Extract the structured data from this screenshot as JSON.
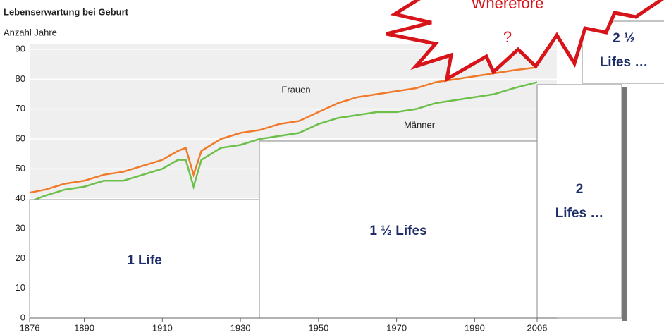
{
  "chart_data": {
    "type": "line",
    "title": "Lebenserwartung bei Geburt",
    "subtitle": "Anzahl Jahre",
    "x": [
      1876,
      1880,
      1885,
      1890,
      1895,
      1900,
      1905,
      1910,
      1914,
      1916,
      1918,
      1920,
      1925,
      1930,
      1935,
      1940,
      1945,
      1950,
      1955,
      1960,
      1965,
      1970,
      1975,
      1980,
      1985,
      1990,
      1995,
      2000,
      2006
    ],
    "series": [
      {
        "name": "Frauen",
        "color": "#f07a2a",
        "values": [
          42,
          43,
          45,
          46,
          48,
          49,
          51,
          53,
          56,
          57,
          48,
          56,
          60,
          62,
          63,
          65,
          66,
          69,
          72,
          74,
          75,
          76,
          77,
          79,
          80,
          81,
          82,
          83,
          84
        ]
      },
      {
        "name": "Männer",
        "color": "#6cc04a",
        "values": [
          39,
          41,
          43,
          44,
          46,
          46,
          48,
          50,
          53,
          53,
          44,
          53,
          57,
          58,
          60,
          61,
          62,
          65,
          67,
          68,
          69,
          69,
          70,
          72,
          73,
          74,
          75,
          77,
          79
        ]
      }
    ],
    "xlim": [
      1876,
      2006
    ],
    "ylim": [
      0,
      90
    ],
    "xticks": [
      1876,
      1890,
      1910,
      1930,
      1950,
      1970,
      1990,
      2006
    ],
    "yticks": [
      0,
      10,
      20,
      30,
      40,
      50,
      60,
      70,
      80,
      90
    ],
    "grid": true,
    "annotations": [
      [
        "1 Life"
      ],
      [
        "1 ½  Lifes"
      ],
      [
        "2",
        "Lifes …"
      ],
      [
        "2 ½",
        "Lifes …"
      ],
      [
        "Wherefore",
        "?"
      ]
    ]
  }
}
